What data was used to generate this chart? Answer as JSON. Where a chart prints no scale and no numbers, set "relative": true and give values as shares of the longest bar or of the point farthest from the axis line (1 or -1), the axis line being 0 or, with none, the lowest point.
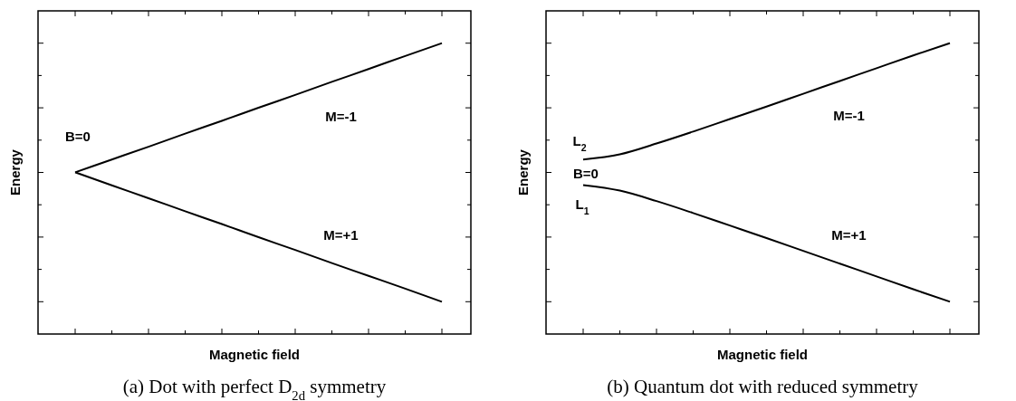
{
  "chart_data": [
    {
      "type": "line",
      "title": "(a) Dot with perfect D$_{2d}$ symmetry",
      "xlabel": "Magnetic field",
      "ylabel": "Energy",
      "relative": true,
      "grid": false,
      "marker": "none",
      "line_style": "solid",
      "annotations": [
        "B=0"
      ],
      "categories": [
        null,
        null,
        null,
        null,
        null,
        null,
        null,
        null,
        null,
        null,
        null
      ],
      "series": [
        {
          "name": "M=-1",
          "color": "#000000",
          "values": [
            0.556,
            0.6,
            0.644,
            0.689,
            0.733,
            0.778,
            0.822,
            0.867,
            0.911,
            0.956,
            1
          ]
        },
        {
          "name": "M=+1",
          "color": "#000000",
          "values": [
            0.556,
            0.511,
            0.467,
            0.422,
            0.378,
            0.333,
            0.289,
            0.244,
            0.2,
            0.156,
            0.111
          ]
        }
      ]
    },
    {
      "type": "line",
      "title": "(b) Quantum dot with reduced symmetry",
      "xlabel": "Magnetic field",
      "ylabel": "Energy",
      "relative": true,
      "grid": false,
      "marker": "none",
      "line_style": "solid",
      "annotations": [
        "L$_{2}$",
        "B=0",
        "L$_{1}$"
      ],
      "categories": [
        null,
        null,
        null,
        null,
        null,
        null,
        null,
        null,
        null,
        null,
        null
      ],
      "series": [
        {
          "name": "M=-1",
          "color": "#000000",
          "values": [
            0.6,
            0.618,
            0.655,
            0.696,
            0.739,
            0.782,
            0.826,
            0.87,
            0.914,
            0.958,
            1
          ]
        },
        {
          "name": "M=+1",
          "color": "#000000",
          "values": [
            0.512,
            0.493,
            0.457,
            0.416,
            0.373,
            0.33,
            0.286,
            0.242,
            0.198,
            0.154,
            0.111
          ]
        }
      ]
    }
  ]
}
